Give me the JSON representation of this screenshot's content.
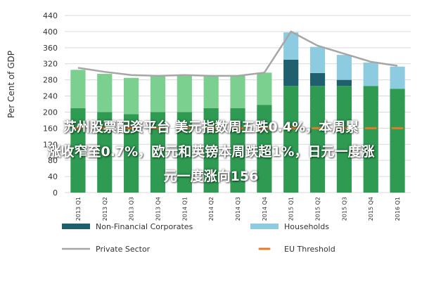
{
  "colors": {
    "non_financial": "#1f5f6e",
    "households": "#8ccbe0",
    "private_sector": "#a6a6a6",
    "eu_threshold": "#e07b2a",
    "govt_green_dark": "#2e9a52",
    "govt_green_light": "#7cd08f",
    "grid": "#d9d9d9",
    "axis_text": "#333333"
  },
  "overlay": {
    "line1": "苏州股票配资平台 美元指数周五跌0.4%，本周累",
    "line2": "涨收窄至0.7%，欧元和英镑本周跌超1%，日元一度涨",
    "line3": "元一度涨向156"
  },
  "chart_data": {
    "type": "bar",
    "ylabel": "Per Cent of GDP",
    "ylim": [
      0,
      440
    ],
    "yticks": [
      0,
      40,
      80,
      120,
      160,
      200,
      240,
      280,
      320,
      360,
      400,
      440
    ],
    "grid": true,
    "legend_position": "bottom",
    "categories": [
      "2013 Q1",
      "2013 Q2",
      "2013 Q3",
      "2013 Q4",
      "2014 Q1",
      "2014 Q2",
      "2014 Q3",
      "2014 Q4",
      "2015 Q1",
      "2015 Q2",
      "2015 Q3",
      "2015 Q4",
      "2016 Q1"
    ],
    "series": [
      {
        "key": "green_dark",
        "values": [
          210,
          200,
          195,
          200,
          200,
          210,
          210,
          218,
          265,
          265,
          265,
          265,
          258
        ]
      },
      {
        "key": "green_light",
        "values": [
          95,
          95,
          90,
          90,
          92,
          80,
          80,
          80,
          0,
          0,
          0,
          0,
          0
        ]
      },
      {
        "key": "non_financial",
        "name": "Non-Financial Corporates",
        "values": [
          0,
          0,
          0,
          0,
          0,
          0,
          0,
          0,
          65,
          32,
          15,
          0,
          0
        ]
      },
      {
        "key": "households",
        "name": "Households",
        "values": [
          0,
          0,
          0,
          0,
          0,
          0,
          0,
          0,
          68,
          65,
          62,
          58,
          55
        ]
      },
      {
        "key": "private_sector",
        "name": "Private Sector",
        "type": "line",
        "values": [
          310,
          300,
          292,
          290,
          292,
          290,
          290,
          298,
          400,
          365,
          345,
          325,
          315
        ]
      },
      {
        "key": "eu_threshold",
        "name": "EU Threshold",
        "type": "line",
        "values": [
          160,
          160,
          160,
          160,
          160,
          160,
          160,
          160,
          160,
          160,
          160,
          160,
          160
        ]
      }
    ]
  }
}
